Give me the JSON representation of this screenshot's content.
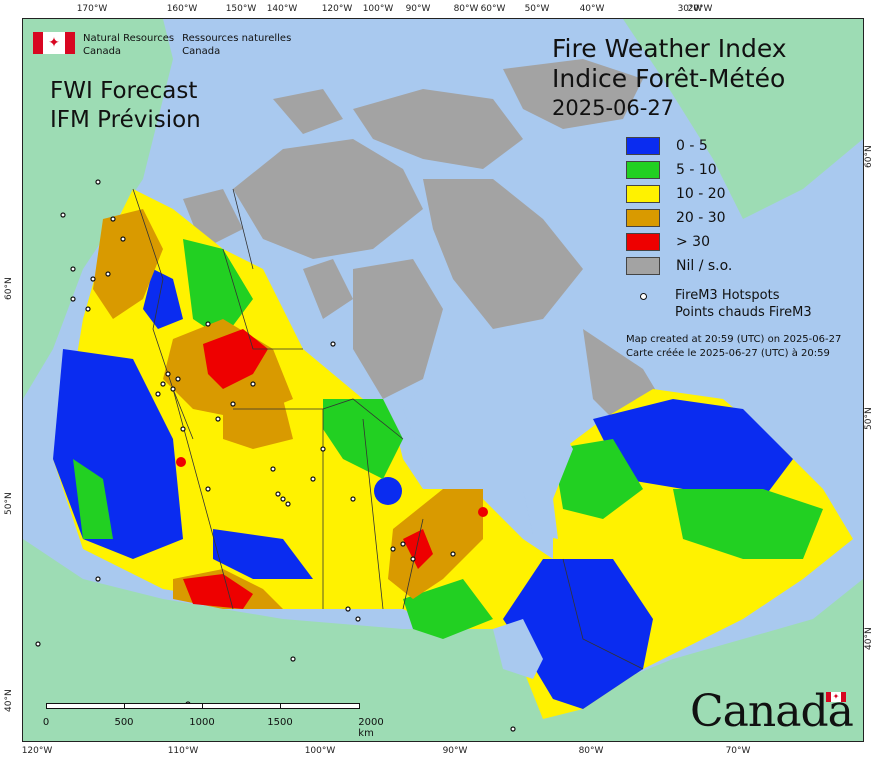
{
  "header": {
    "agency_en_1": "Natural Resources",
    "agency_en_2": "Canada",
    "agency_fr_1": "Ressources naturelles",
    "agency_fr_2": "Canada"
  },
  "forecast_label_en": "FWI Forecast",
  "forecast_label_fr": "IFM Prévision",
  "title_en": "Fire Weather Index",
  "title_fr": "Indice Forêt-Météo",
  "date": "2025-06-27",
  "legend": [
    {
      "label": "0 - 5",
      "color": "#0a2cf0"
    },
    {
      "label": "5 - 10",
      "color": "#22d022"
    },
    {
      "label": "10 - 20",
      "color": "#fff200"
    },
    {
      "label": "20 - 30",
      "color": "#d99a00"
    },
    {
      "label": "> 30",
      "color": "#ee0000"
    },
    {
      "label": "Nil / s.o.",
      "color": "#a3a3a3"
    }
  ],
  "hotspots_en": "FireM3 Hotspots",
  "hotspots_fr": "Points chauds FireM3",
  "created_en": "Map created at 20:59 (UTC) on 2025-06-27",
  "created_fr": "Carte créée le 2025-06-27 (UTC) à 20:59",
  "scalebar": {
    "labels": [
      "0",
      "500",
      "1000",
      "1500",
      "2000 km"
    ]
  },
  "wordmark": "Canada",
  "ticks": {
    "top": [
      "170°W",
      "160°W",
      "150°W",
      "140°W",
      "120°W",
      "100°W",
      "90°W",
      "80°W",
      "60°W",
      "50°W",
      "40°W",
      "30°W",
      "20°W"
    ],
    "bottom": [
      "120°W",
      "110°W",
      "100°W",
      "90°W",
      "80°W",
      "70°W"
    ],
    "left": [
      "60°N",
      "50°N",
      "40°N"
    ],
    "right": [
      "60°N",
      "50°N",
      "40°N"
    ]
  },
  "colors": {
    "water": "#a9c9ef",
    "land_outside": "#9ddcb4",
    "nil": "#a3a3a3",
    "boundary": "#333333"
  }
}
